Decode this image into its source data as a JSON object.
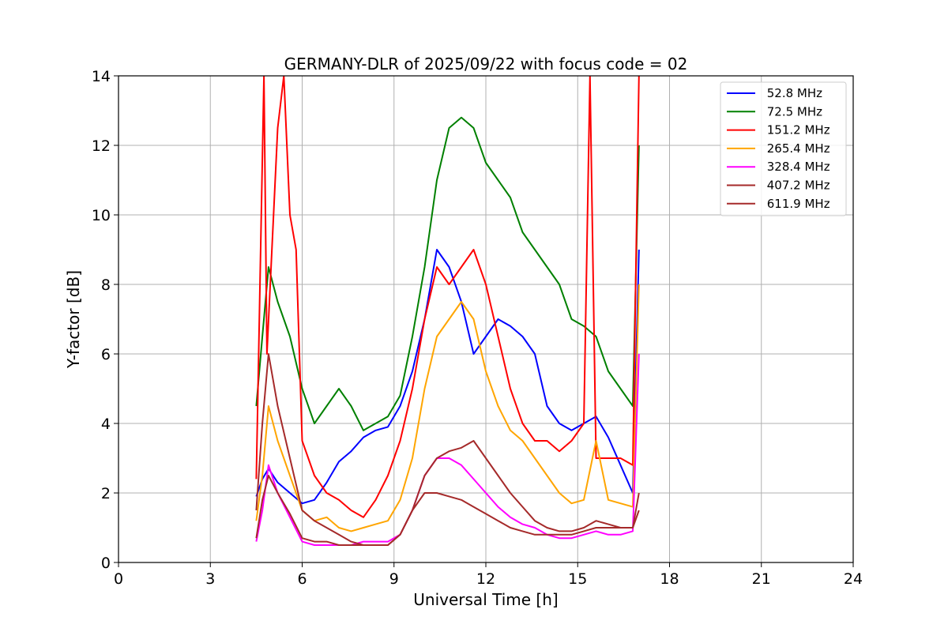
{
  "chart_data": {
    "type": "line",
    "title": "GERMANY-DLR of 2025/09/22 with focus code = 02",
    "xlabel": "Universal Time [h]",
    "ylabel": "Y-factor [dB]",
    "xlim": [
      0,
      24
    ],
    "ylim": [
      0,
      14
    ],
    "xticks": [
      0,
      3,
      6,
      9,
      12,
      15,
      18,
      21,
      24
    ],
    "yticks": [
      0,
      2,
      4,
      6,
      8,
      10,
      12,
      14
    ],
    "grid": true,
    "legend_position": "top-right",
    "series": [
      {
        "name": " 52.8 MHz",
        "color": "#0000ff",
        "x": [
          4.5,
          4.7,
          4.9,
          5.2,
          5.6,
          6.0,
          6.4,
          6.8,
          7.2,
          7.6,
          8.0,
          8.4,
          8.8,
          9.2,
          9.6,
          10.0,
          10.4,
          10.8,
          11.2,
          11.6,
          12.0,
          12.4,
          12.8,
          13.2,
          13.6,
          14.0,
          14.4,
          14.8,
          15.2,
          15.6,
          16.0,
          16.4,
          16.8,
          17.0
        ],
        "y": [
          1.9,
          2.4,
          2.7,
          2.3,
          2.0,
          1.7,
          1.8,
          2.3,
          2.9,
          3.2,
          3.6,
          3.8,
          3.9,
          4.5,
          5.5,
          7.0,
          9.0,
          8.5,
          7.5,
          6.0,
          6.5,
          7.0,
          6.8,
          6.5,
          6.0,
          4.5,
          4.0,
          3.8,
          4.0,
          4.2,
          3.6,
          2.8,
          2.0,
          9.0
        ]
      },
      {
        "name": " 72.5 MHz",
        "color": "#008000",
        "x": [
          4.5,
          4.7,
          4.9,
          5.2,
          5.6,
          6.0,
          6.4,
          6.8,
          7.2,
          7.6,
          8.0,
          8.4,
          8.8,
          9.2,
          9.6,
          10.0,
          10.4,
          10.8,
          11.2,
          11.6,
          12.0,
          12.4,
          12.8,
          13.2,
          13.6,
          14.0,
          14.4,
          14.8,
          15.2,
          15.6,
          16.0,
          16.4,
          16.8,
          17.0
        ],
        "y": [
          4.5,
          6.5,
          8.5,
          7.5,
          6.5,
          5.0,
          4.0,
          4.5,
          5.0,
          4.5,
          3.8,
          4.0,
          4.2,
          4.8,
          6.5,
          8.5,
          11.0,
          12.5,
          12.8,
          12.5,
          11.5,
          11.0,
          10.5,
          9.5,
          9.0,
          8.5,
          8.0,
          7.0,
          6.8,
          6.5,
          5.5,
          5.0,
          4.5,
          12.0
        ]
      },
      {
        "name": " 151.2 MHz",
        "color": "#ff0000",
        "x": [
          4.5,
          4.75,
          4.85,
          5.2,
          5.4,
          5.6,
          5.8,
          6.0,
          6.4,
          6.8,
          7.2,
          7.6,
          8.0,
          8.4,
          8.8,
          9.2,
          9.6,
          10.0,
          10.4,
          10.8,
          11.2,
          11.6,
          12.0,
          12.4,
          12.8,
          13.2,
          13.6,
          14.0,
          14.4,
          14.8,
          15.2,
          15.4,
          15.6,
          16.0,
          16.4,
          16.8,
          17.0
        ],
        "y": [
          2.4,
          14.0,
          6.0,
          12.5,
          14.0,
          10.0,
          9.0,
          3.5,
          2.5,
          2.0,
          1.8,
          1.5,
          1.3,
          1.8,
          2.5,
          3.5,
          5.0,
          7.0,
          8.5,
          8.0,
          8.5,
          9.0,
          8.0,
          6.5,
          5.0,
          4.0,
          3.5,
          3.5,
          3.2,
          3.5,
          4.0,
          14.0,
          3.0,
          3.0,
          3.0,
          2.8,
          14.0
        ]
      },
      {
        "name": " 265.4 MHz",
        "color": "#ffa500",
        "x": [
          4.5,
          4.7,
          4.9,
          5.2,
          5.6,
          6.0,
          6.4,
          6.8,
          7.2,
          7.6,
          8.0,
          8.4,
          8.8,
          9.2,
          9.6,
          10.0,
          10.4,
          10.8,
          11.2,
          11.6,
          12.0,
          12.4,
          12.8,
          13.2,
          13.6,
          14.0,
          14.4,
          14.8,
          15.2,
          15.6,
          16.0,
          16.4,
          16.8,
          17.0
        ],
        "y": [
          1.2,
          2.5,
          4.5,
          3.5,
          2.5,
          1.5,
          1.2,
          1.3,
          1.0,
          0.9,
          1.0,
          1.1,
          1.2,
          1.8,
          3.0,
          5.0,
          6.5,
          7.0,
          7.5,
          7.0,
          5.5,
          4.5,
          3.8,
          3.5,
          3.0,
          2.5,
          2.0,
          1.7,
          1.8,
          3.5,
          1.8,
          1.7,
          1.6,
          8.0
        ]
      },
      {
        "name": " 328.4 MHz",
        "color": "#ff00ff",
        "x": [
          4.5,
          4.7,
          4.9,
          5.2,
          5.6,
          6.0,
          6.4,
          6.8,
          7.2,
          7.6,
          8.0,
          8.4,
          8.8,
          9.2,
          9.6,
          10.0,
          10.4,
          10.8,
          11.2,
          11.6,
          12.0,
          12.4,
          12.8,
          13.2,
          13.6,
          14.0,
          14.4,
          14.8,
          15.2,
          15.6,
          16.0,
          16.4,
          16.8,
          17.0
        ],
        "y": [
          0.6,
          1.5,
          2.8,
          2.0,
          1.3,
          0.6,
          0.5,
          0.5,
          0.5,
          0.5,
          0.6,
          0.6,
          0.6,
          0.8,
          1.5,
          2.5,
          3.0,
          3.0,
          2.8,
          2.4,
          2.0,
          1.6,
          1.3,
          1.1,
          1.0,
          0.8,
          0.7,
          0.7,
          0.8,
          0.9,
          0.8,
          0.8,
          0.9,
          6.0
        ]
      },
      {
        "name": " 407.2 MHz",
        "color": "#a52a2a",
        "x": [
          4.5,
          4.7,
          4.9,
          5.2,
          5.6,
          6.0,
          6.4,
          6.8,
          7.2,
          7.6,
          8.0,
          8.4,
          8.8,
          9.2,
          9.6,
          10.0,
          10.4,
          10.8,
          11.2,
          11.6,
          12.0,
          12.4,
          12.8,
          13.2,
          13.6,
          14.0,
          14.4,
          14.8,
          15.2,
          15.6,
          16.0,
          16.4,
          16.8,
          17.0
        ],
        "y": [
          1.5,
          4.0,
          6.0,
          4.5,
          3.0,
          1.5,
          1.2,
          1.0,
          0.8,
          0.6,
          0.5,
          0.5,
          0.5,
          0.8,
          1.5,
          2.5,
          3.0,
          3.2,
          3.3,
          3.5,
          3.0,
          2.5,
          2.0,
          1.6,
          1.2,
          1.0,
          0.9,
          0.9,
          1.0,
          1.2,
          1.1,
          1.0,
          1.0,
          2.0
        ]
      },
      {
        "name": " 611.9 MHz",
        "color": "#a52a2a",
        "x": [
          4.5,
          4.7,
          4.9,
          5.2,
          5.6,
          6.0,
          6.4,
          6.8,
          7.2,
          7.6,
          8.0,
          8.4,
          8.8,
          9.2,
          9.6,
          10.0,
          10.4,
          10.8,
          11.2,
          11.6,
          12.0,
          12.4,
          12.8,
          13.2,
          13.6,
          14.0,
          14.4,
          14.8,
          15.2,
          15.6,
          16.0,
          16.4,
          16.8,
          17.0
        ],
        "y": [
          0.7,
          1.8,
          2.5,
          2.0,
          1.4,
          0.7,
          0.6,
          0.6,
          0.5,
          0.5,
          0.5,
          0.5,
          0.5,
          0.8,
          1.5,
          2.0,
          2.0,
          1.9,
          1.8,
          1.6,
          1.4,
          1.2,
          1.0,
          0.9,
          0.8,
          0.8,
          0.8,
          0.8,
          0.9,
          1.0,
          1.0,
          1.0,
          1.0,
          1.5
        ]
      }
    ]
  }
}
